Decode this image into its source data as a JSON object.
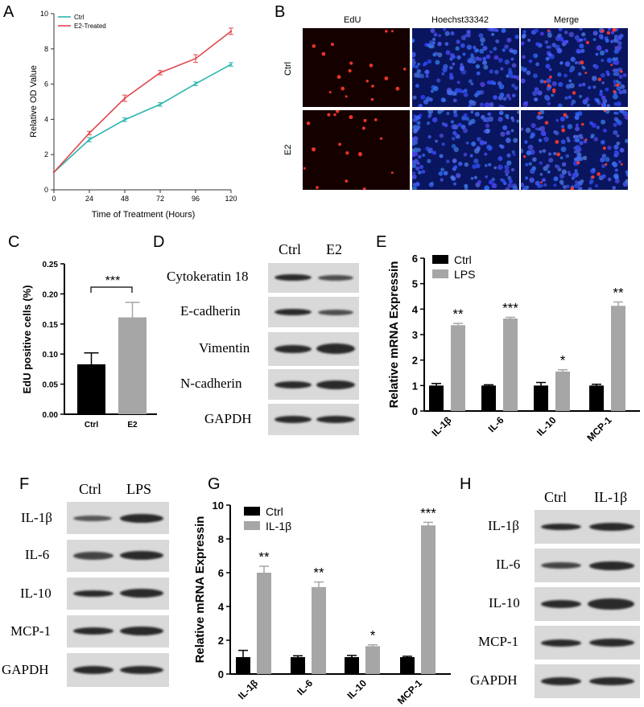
{
  "panels": {
    "A": "A",
    "B": "B",
    "C": "C",
    "D": "D",
    "E": "E",
    "F": "F",
    "G": "G",
    "H": "H"
  },
  "colors": {
    "ctrl_line": "#2bb5b0",
    "e2_line": "#e0474c",
    "bar_black": "#000000",
    "bar_gray": "#a6a6a6",
    "blot_bg": "#d9d9d9",
    "band": "#2a2a2a",
    "micro_bg_edu": "#150000",
    "micro_bg_hoechst": "#0a1560"
  },
  "panelB": {
    "columns": [
      "EdU",
      "Hoechst33342",
      "Merge"
    ],
    "rows": [
      "Ctrl",
      "E2"
    ]
  },
  "panelD": {
    "header": [
      "Ctrl",
      "E2"
    ],
    "rows": [
      "Cytokeratin 18",
      "E-cadherin",
      "Vimentin",
      "N-cadherin",
      "GAPDH"
    ]
  },
  "panelF": {
    "header": [
      "Ctrl",
      "LPS"
    ],
    "rows": [
      "IL-1β",
      "IL-6",
      "IL-10",
      "MCP-1",
      "GAPDH"
    ]
  },
  "panelH": {
    "header": [
      "Ctrl",
      "IL-1β"
    ],
    "rows": [
      "IL-1β",
      "IL-6",
      "IL-10",
      "MCP-1",
      "GAPDH"
    ]
  },
  "chart_data": [
    {
      "id": "A",
      "type": "line",
      "xlabel": "Time of Treatment (Hours)",
      "ylabel": "Relative OD Value",
      "x": [
        0,
        24,
        48,
        72,
        96,
        120
      ],
      "xlim": [
        0,
        120
      ],
      "ylim": [
        0,
        10
      ],
      "xticks": [
        0,
        24,
        48,
        72,
        96,
        120
      ],
      "yticks": [
        0,
        2,
        4,
        6,
        8,
        10
      ],
      "legend_position": "top-left",
      "series": [
        {
          "name": "Ctrl",
          "color": "#2bb5b0",
          "values": [
            1.0,
            2.85,
            3.98,
            4.85,
            6.02,
            7.12
          ],
          "errors": [
            0,
            0.12,
            0.1,
            0.1,
            0.1,
            0.1
          ]
        },
        {
          "name": "E2-Treated",
          "color": "#e0474c",
          "values": [
            1.0,
            3.22,
            5.2,
            6.65,
            7.45,
            9.0
          ],
          "errors": [
            0,
            0.1,
            0.18,
            0.12,
            0.22,
            0.18
          ]
        }
      ]
    },
    {
      "id": "C",
      "type": "bar",
      "ylabel": "EdU positive cells (%)",
      "categories": [
        "Ctrl",
        "E2"
      ],
      "ylim": [
        0,
        0.25
      ],
      "yticks": [
        "0.00",
        "0.05",
        "0.10",
        "0.15",
        "0.20",
        "0.25"
      ],
      "values": [
        0.083,
        0.161
      ],
      "errors": [
        0.019,
        0.025
      ],
      "colors": [
        "#000000",
        "#a6a6a6"
      ],
      "significance": "***"
    },
    {
      "id": "E",
      "type": "bar",
      "ylabel": "Relative mRNA Expressin",
      "categories": [
        "IL-1β",
        "IL-6",
        "IL-10",
        "MCP-1"
      ],
      "ylim": [
        0,
        6
      ],
      "yticks": [
        "0",
        "1",
        "2",
        "3",
        "4",
        "5",
        "6"
      ],
      "series": [
        {
          "name": "Ctrl",
          "color": "#000000",
          "values": [
            1.0,
            1.0,
            1.0,
            1.0
          ],
          "errors": [
            0.08,
            0.03,
            0.12,
            0.05
          ]
        },
        {
          "name": "LPS",
          "color": "#a6a6a6",
          "values": [
            3.37,
            3.63,
            1.55,
            4.13
          ],
          "errors": [
            0.07,
            0.05,
            0.07,
            0.15
          ]
        }
      ],
      "significance": [
        "**",
        "***",
        "*",
        "**"
      ],
      "legend_position": "top-left"
    },
    {
      "id": "G",
      "type": "bar",
      "ylabel": "Relative mRNA Expressin",
      "categories": [
        "IL-1β",
        "IL-6",
        "IL-10",
        "MCP-1"
      ],
      "ylim": [
        0,
        10
      ],
      "yticks": [
        "0",
        "2",
        "4",
        "6",
        "8",
        "10"
      ],
      "series": [
        {
          "name": "Ctrl",
          "color": "#000000",
          "values": [
            1.0,
            1.0,
            1.0,
            1.0
          ],
          "errors": [
            0.4,
            0.08,
            0.1,
            0.05
          ]
        },
        {
          "name": "IL-1β",
          "color": "#a6a6a6",
          "values": [
            6.0,
            5.15,
            1.65,
            8.8
          ],
          "errors": [
            0.38,
            0.3,
            0.08,
            0.18
          ]
        }
      ],
      "significance": [
        "**",
        "**",
        "*",
        "***"
      ],
      "legend_position": "top-left"
    }
  ]
}
